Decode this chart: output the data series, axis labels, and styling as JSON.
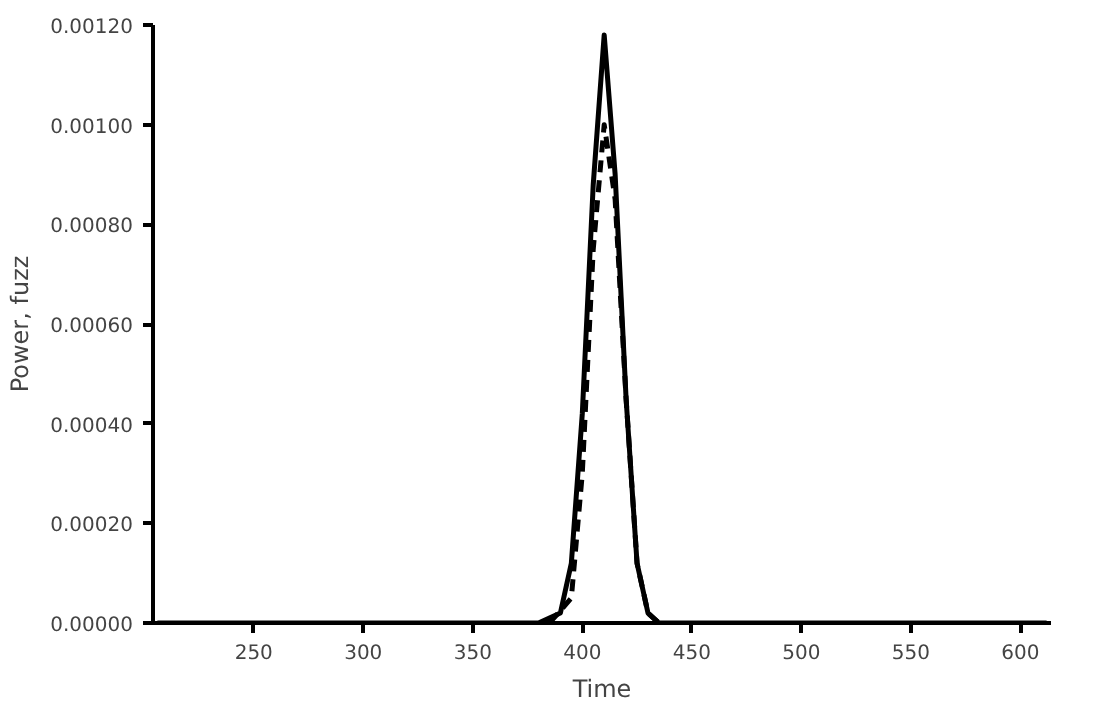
{
  "chart_data": {
    "type": "line",
    "xlabel": "Time",
    "ylabel": "Power, fuzz",
    "xlim": [
      204,
      614
    ],
    "ylim": [
      0,
      0.0012
    ],
    "xticks": [
      250,
      300,
      350,
      400,
      450,
      500,
      550,
      600
    ],
    "yticks": [
      {
        "value": 0,
        "label": "0.00000"
      },
      {
        "value": 0.0002,
        "label": "0.00020"
      },
      {
        "value": 0.0004,
        "label": "0.00040"
      },
      {
        "value": 0.0006,
        "label": "0.00060"
      },
      {
        "value": 0.0008,
        "label": "0.00080"
      },
      {
        "value": 0.001,
        "label": "0.00100"
      },
      {
        "value": 0.0012,
        "label": "0.00120"
      }
    ],
    "grid": false,
    "series": [
      {
        "color": "#000000",
        "line_style": "solid",
        "x": [
          206,
          300,
          380,
          390,
          395,
          400,
          405,
          410,
          415,
          420,
          425,
          430,
          435,
          520,
          612
        ],
        "values": [
          0,
          0,
          0,
          2e-05,
          0.00012,
          0.00042,
          0.00088,
          0.00118,
          0.0009,
          0.00045,
          0.00012,
          2e-05,
          0,
          0,
          0
        ]
      },
      {
        "color": "#000000",
        "line_style": "dashed",
        "x": [
          385,
          395,
          400,
          405,
          410,
          415,
          420,
          425,
          430,
          435
        ],
        "values": [
          0,
          5e-05,
          0.0003,
          0.00075,
          0.001,
          0.00085,
          0.00045,
          0.00012,
          2e-05,
          0
        ]
      }
    ]
  }
}
